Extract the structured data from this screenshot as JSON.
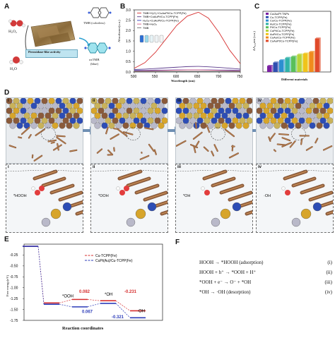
{
  "panels": {
    "A": {
      "label": "A",
      "h2o2": "H₂O₂",
      "h2o": "H₂O",
      "tmb": "TMB (colorless)",
      "activity": "Peroxidase-like activity",
      "oxtmb": "oxTMB",
      "oxtmb_color": "(blue)"
    },
    "B": {
      "label": "B",
      "ylabel": "Absorbance(a.u.)",
      "xlabel": "Wavelength (nm)",
      "legend": [
        "TMB+H₂O₂+CuAuPt/Cu-TCPP(Fe)",
        "TMB+CuAuPt/Cu-TCPP(Fe)",
        "H₂O₂+CuAuPt/Cu-TCPP(Fe)",
        "TMB+H₂O₂",
        "TMB"
      ],
      "xticks": [
        "500",
        "550",
        "600",
        "650",
        "700",
        "750"
      ],
      "yticks": [
        "0.0",
        "0.5",
        "1.0",
        "1.5",
        "2.0",
        "2.5",
        "3.0"
      ]
    },
    "C": {
      "label": "C",
      "ylabel": "ΔA₆₅₂nm (a.u.)",
      "xlabel": "Different materials",
      "legend": [
        "Cu/Au/Pt TNPs",
        "Cu-TCPP(Fe)",
        "Cu/Cu-TCPP(Fe)",
        "Au/Cu-TCPP(Fe)",
        "Pt/Cu-TCPP(Fe)",
        "CuPt/Cu-TCPP(Fe)",
        "AuPt/Cu-TCPP(Fe)",
        "CuAu/Cu-TCPP(Fe)",
        "CuAuPt/Cu-TCPP(Fe)"
      ]
    },
    "D": {
      "label": "D",
      "steps": [
        "i",
        "ii",
        "iii",
        "iv"
      ],
      "zoom_labels": [
        "*HOOH",
        "*OOH",
        "*OH",
        "·OH"
      ]
    },
    "E": {
      "label": "E",
      "ylabel": "Free energy(eV)",
      "xlabel": "Reaction coordinates",
      "yticks": [
        "-0.25",
        "-0.50",
        "-0.75",
        "-1.00",
        "-1.25",
        "-1.50",
        "-1.75"
      ],
      "legend": [
        "Cu-TCPP(Fe)",
        "CuPt(Au)/Cu-TCPP(Fe)"
      ],
      "annotations": {
        "ooh": "*OOH",
        "oh": "*OH",
        "free_oh": "·OH",
        "red1": "0.082",
        "blue1": "0.067",
        "red2": "-0.231",
        "blue2": "-0.321"
      }
    },
    "F": {
      "label": "F",
      "equations": [
        {
          "text": "HOOH → *HOOH  (adsorption)",
          "num": "(i)"
        },
        {
          "text": "HOOH + h⁺ → *OOH + H⁺",
          "num": "(ii)"
        },
        {
          "text": "*OOH + e⁻ → O⁻ + *OH",
          "num": "(iii)"
        },
        {
          "text": "*OH → ·OH  (desorption)",
          "num": "(iv)"
        }
      ]
    }
  },
  "colors": {
    "red": "#d62f2f",
    "blue": "#2b3bb8",
    "pink": "#d85b86",
    "purple": "#5b3a8c",
    "gray": "#6a6a6a",
    "gold": "#d7a52b",
    "brown": "#8a5a3a",
    "teal": "#2fa7b3"
  },
  "chart_data": [
    {
      "type": "line",
      "title": "",
      "xlabel": "Wavelength (nm)",
      "ylabel": "Absorbance(a.u.)",
      "xlim": [
        500,
        750
      ],
      "ylim": [
        0,
        3.0
      ],
      "x": [
        500,
        525,
        550,
        575,
        600,
        625,
        650,
        652,
        675,
        700,
        725,
        750
      ],
      "series": [
        {
          "name": "TMB+H₂O₂+CuAuPt/Cu-TCPP(Fe)",
          "values": [
            0.18,
            0.45,
            0.95,
            1.6,
            2.25,
            2.7,
            2.88,
            2.88,
            2.6,
            1.9,
            1.05,
            0.4
          ]
        },
        {
          "name": "TMB+CuAuPt/Cu-TCPP(Fe)",
          "values": [
            0.12,
            0.14,
            0.17,
            0.2,
            0.23,
            0.26,
            0.27,
            0.27,
            0.25,
            0.22,
            0.18,
            0.14
          ]
        },
        {
          "name": "H₂O₂+CuAuPt/Cu-TCPP(Fe)",
          "values": [
            0.08,
            0.08,
            0.09,
            0.09,
            0.1,
            0.1,
            0.1,
            0.1,
            0.1,
            0.09,
            0.09,
            0.08
          ]
        },
        {
          "name": "TMB+H₂O₂",
          "values": [
            0.05,
            0.06,
            0.07,
            0.08,
            0.09,
            0.1,
            0.1,
            0.1,
            0.09,
            0.08,
            0.07,
            0.06
          ]
        },
        {
          "name": "TMB",
          "values": [
            0.03,
            0.03,
            0.03,
            0.03,
            0.03,
            0.03,
            0.03,
            0.03,
            0.03,
            0.03,
            0.03,
            0.03
          ]
        }
      ]
    },
    {
      "type": "bar",
      "title": "",
      "xlabel": "Different materials",
      "ylabel": "ΔA₆₅₂nm (a.u.)",
      "categories": [
        "Cu/Au/Pt TNPs",
        "Cu-TCPP(Fe)",
        "Cu/Cu-TCPP(Fe)",
        "Au/Cu-TCPP(Fe)",
        "Pt/Cu-TCPP(Fe)",
        "CuPt/Cu-TCPP(Fe)",
        "AuPt/Cu-TCPP(Fe)",
        "CuAu/Cu-TCPP(Fe)",
        "CuAuPt/Cu-TCPP(Fe)"
      ],
      "values": [
        0.18,
        0.28,
        0.35,
        0.42,
        0.46,
        0.52,
        0.55,
        0.6,
        1.0
      ],
      "colors": [
        "#7a1fa2",
        "#2f4fb0",
        "#2c8fd0",
        "#2fb2a8",
        "#59c05a",
        "#b5d43a",
        "#f0c419",
        "#f08b1c",
        "#e04a2a"
      ]
    },
    {
      "type": "line",
      "title": "",
      "xlabel": "Reaction coordinates",
      "ylabel": "Free energy(eV)",
      "ylim": [
        -1.75,
        0
      ],
      "categories": [
        "HOOH",
        "*HOOH",
        "*OOH",
        "*OH",
        "·OH"
      ],
      "series": [
        {
          "name": "Cu-TCPP(Fe)",
          "values": [
            -0.05,
            -1.35,
            -1.27,
            -1.3,
            -1.53
          ]
        },
        {
          "name": "CuPt(Au)/Cu-TCPP(Fe)",
          "values": [
            -0.05,
            -1.38,
            -1.44,
            -1.36,
            -1.69
          ]
        }
      ]
    }
  ]
}
